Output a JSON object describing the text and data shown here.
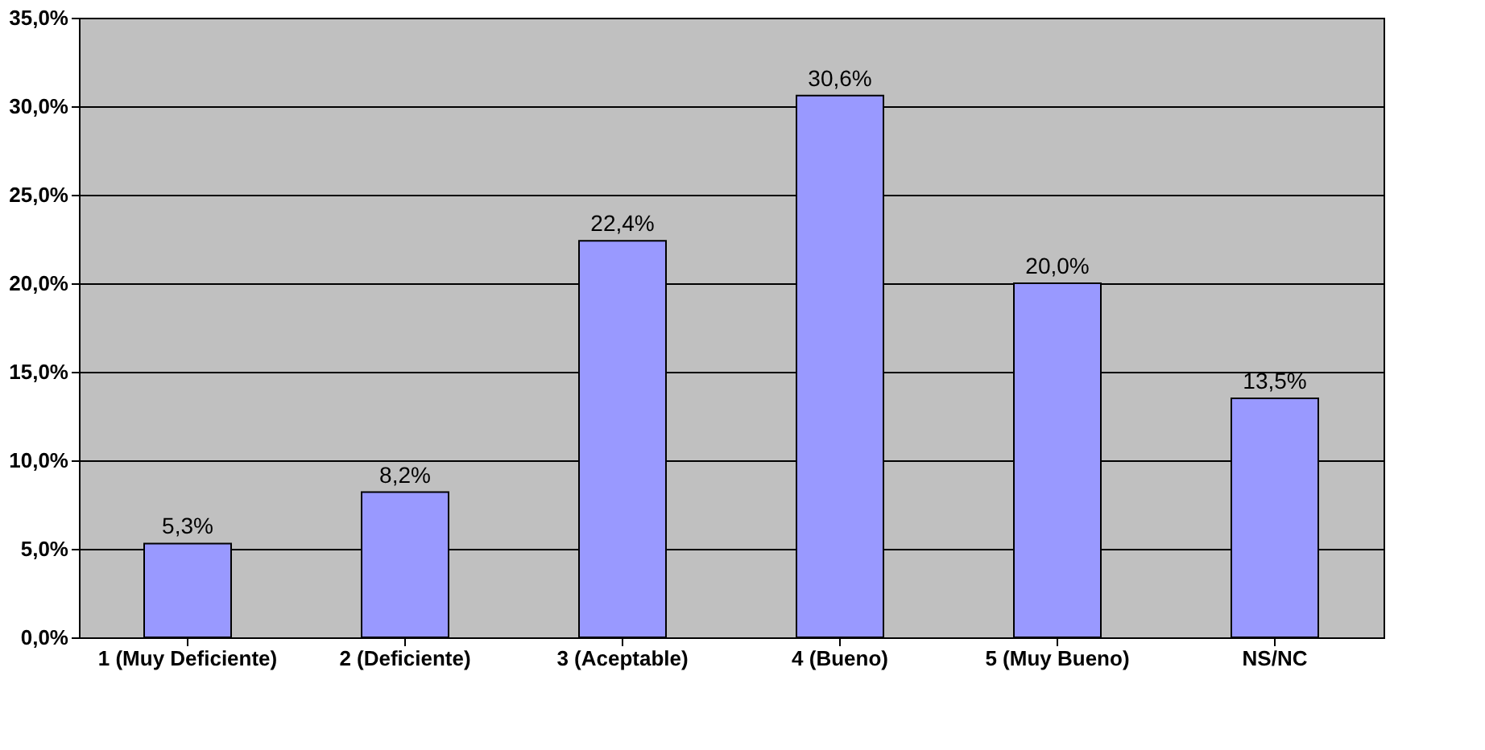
{
  "chart_data": {
    "type": "bar",
    "categories": [
      "1 (Muy Deficiente)",
      "2 (Deficiente)",
      "3 (Aceptable)",
      "4 (Bueno)",
      "5 (Muy Bueno)",
      "NS/NC"
    ],
    "values": [
      5.3,
      8.2,
      22.4,
      30.6,
      20.0,
      13.5
    ],
    "value_labels": [
      "5,3%",
      "8,2%",
      "22,4%",
      "30,6%",
      "20,0%",
      "13,5%"
    ],
    "color": "#9999ff",
    "ylim": [
      0,
      35
    ],
    "yticks": [
      {
        "value": 0,
        "label": "0,0%"
      },
      {
        "value": 5,
        "label": "5,0%"
      },
      {
        "value": 10,
        "label": "10,0%"
      },
      {
        "value": 15,
        "label": "15,0%"
      },
      {
        "value": 20,
        "label": "20,0%"
      },
      {
        "value": 25,
        "label": "25,0%"
      },
      {
        "value": 30,
        "label": "30,0%"
      },
      {
        "value": 35,
        "label": "35,0%"
      }
    ],
    "grid": "y"
  }
}
